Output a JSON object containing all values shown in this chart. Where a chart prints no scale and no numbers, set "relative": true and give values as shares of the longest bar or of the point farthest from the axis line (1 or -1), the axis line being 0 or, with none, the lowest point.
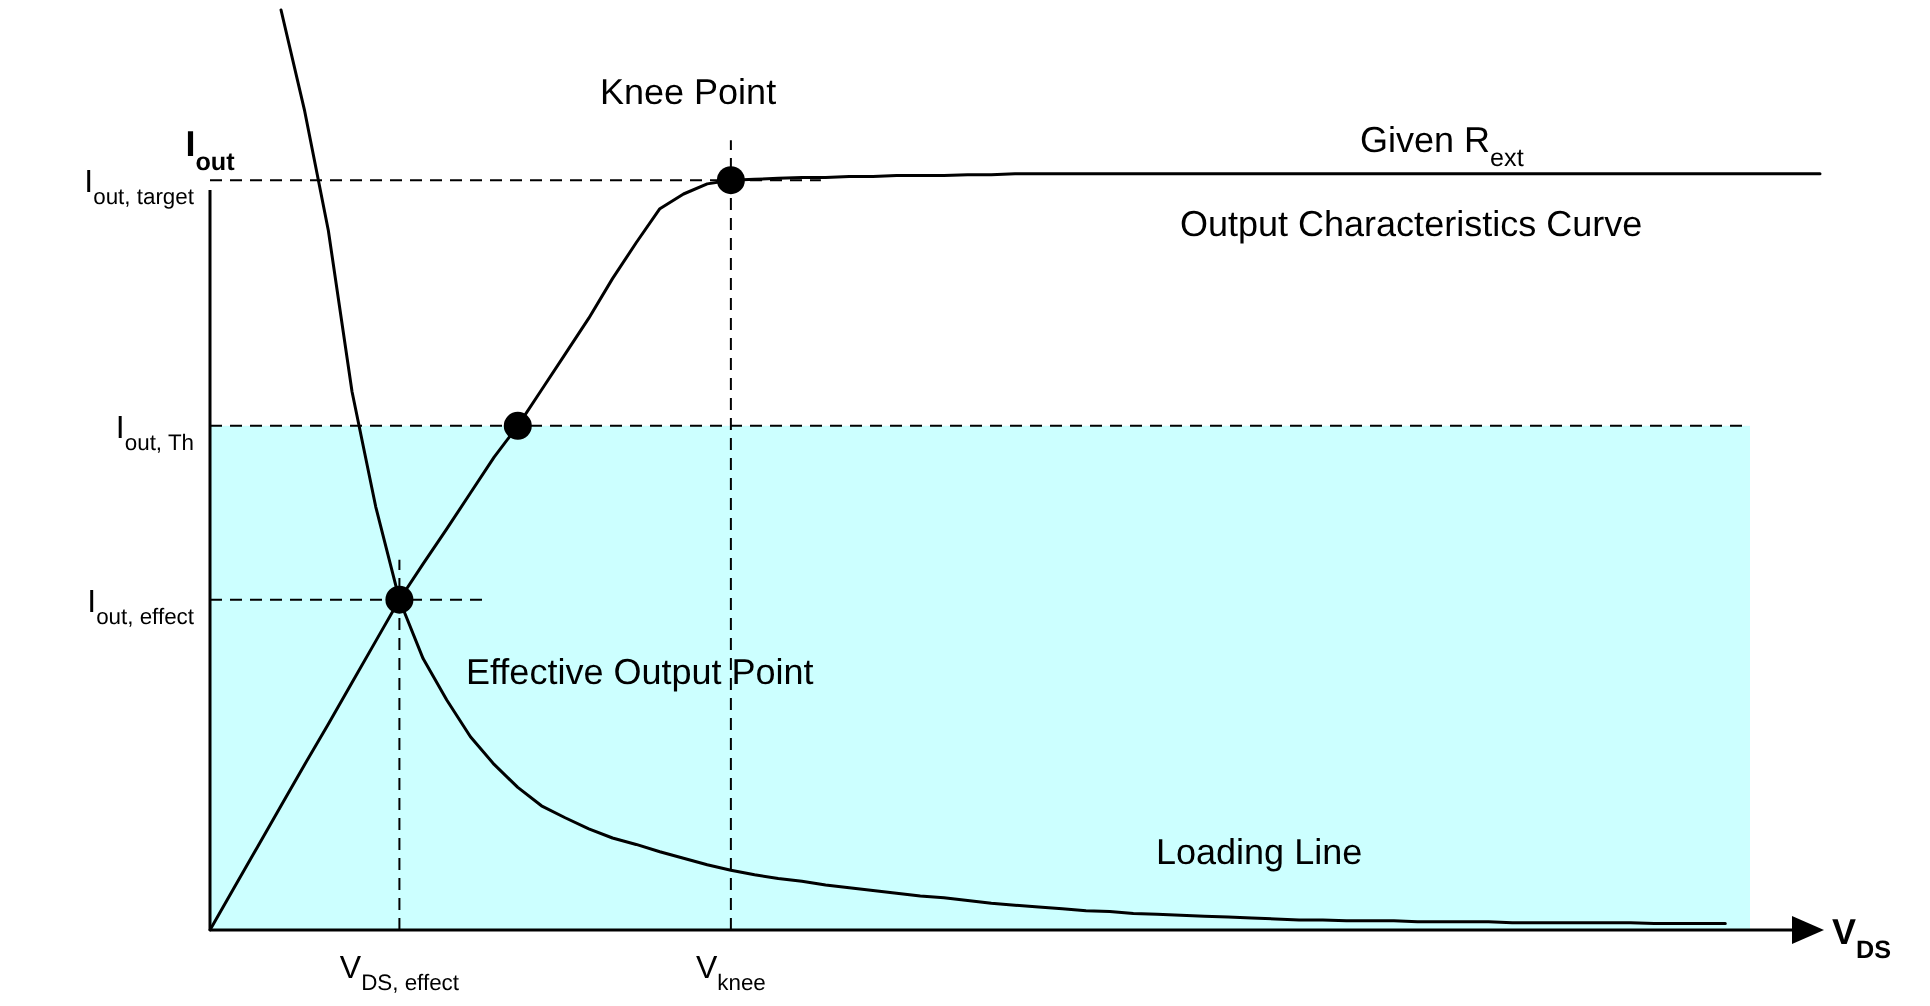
{
  "chart_data": {
    "type": "line",
    "relative": true,
    "ylabel": "I$_{out}$",
    "xlabel": "V$_{DS}$",
    "grid": false,
    "categories": [
      null,
      null,
      null,
      null,
      null,
      null,
      null,
      null,
      "V$_{DS, effect}$",
      null,
      null,
      null,
      null,
      null,
      null,
      null,
      null,
      null,
      null,
      null,
      null,
      null,
      "V$_{knee}$",
      null,
      null,
      null,
      null,
      null,
      null,
      null,
      null,
      null,
      null,
      null,
      null,
      null,
      null,
      null,
      null,
      null,
      null,
      null,
      null,
      null,
      null,
      null,
      null,
      null,
      null,
      null,
      null,
      null,
      null,
      null,
      null,
      null,
      null,
      null,
      null,
      null,
      null,
      null,
      null,
      null,
      null,
      null,
      null,
      null,
      null
    ],
    "series": [
      {
        "color": "#000000",
        "values": [
          0,
          0.045,
          0.09,
          0.135,
          0.18,
          0.224,
          0.269,
          0.314,
          0.359,
          0.398,
          0.436,
          0.475,
          0.514,
          0.548,
          0.587,
          0.626,
          0.665,
          0.708,
          0.747,
          0.784,
          0.8,
          0.811,
          0.815,
          0.816,
          0.817,
          0.818,
          0.818,
          0.819,
          0.819,
          0.82,
          0.82,
          0.82,
          0.821,
          0.821,
          0.822,
          0.822,
          0.822,
          0.822,
          0.822,
          0.822,
          0.822,
          0.822,
          0.822,
          0.822,
          0.822,
          0.822,
          0.822,
          0.822,
          0.822,
          0.822,
          0.822,
          0.822,
          0.822,
          0.822,
          0.822,
          0.822,
          0.822,
          0.822,
          0.822,
          0.822,
          0.822,
          0.822,
          0.822,
          0.822,
          0.822,
          0.822,
          0.822,
          0.822,
          0.822
        ]
      },
      {
        "color": "#000000",
        "values": [
          null,
          null,
          null,
          1.0,
          0.89,
          0.76,
          0.585,
          0.46,
          0.359,
          0.295,
          0.25,
          0.21,
          0.18,
          0.155,
          0.135,
          0.122,
          0.11,
          0.1,
          0.093,
          0.085,
          0.078,
          0.071,
          0.065,
          0.06,
          0.056,
          0.053,
          0.049,
          0.046,
          0.043,
          0.04,
          0.037,
          0.035,
          0.032,
          0.029,
          0.027,
          0.025,
          0.023,
          0.021,
          0.02,
          0.018,
          0.017,
          0.016,
          0.015,
          0.014,
          0.013,
          0.012,
          0.011,
          0.011,
          0.01,
          0.01,
          0.01,
          0.009,
          0.009,
          0.009,
          0.009,
          0.008,
          0.008,
          0.008,
          0.008,
          0.008,
          0.008,
          0.007,
          0.007,
          0.007,
          0.007,
          null,
          null,
          null,
          null
        ]
      },
      {
        "type": "scatter",
        "color": "#000000",
        "marker": "circle",
        "values": [
          null,
          null,
          null,
          null,
          null,
          null,
          null,
          null,
          0.359,
          null,
          null,
          null,
          null,
          0.548,
          null,
          null,
          null,
          null,
          null,
          null,
          null,
          null,
          0.815,
          null,
          null,
          null,
          null,
          null,
          null,
          null,
          null,
          null,
          null,
          null,
          null,
          null,
          null,
          null,
          null,
          null,
          null,
          null,
          null,
          null,
          null,
          null,
          null,
          null,
          null,
          null,
          null,
          null,
          null,
          null,
          null,
          null,
          null,
          null,
          null,
          null,
          null,
          null,
          null,
          null,
          null,
          null,
          null,
          null,
          null
        ]
      }
    ],
    "ref_lines": [
      {
        "axis": "y",
        "value": 0.815,
        "label": "I$_{out, target}$",
        "line_style": "dashed"
      },
      {
        "axis": "y",
        "value": 0.548,
        "label": "I$_{out, Th}$",
        "line_style": "dashed"
      },
      {
        "axis": "y",
        "value": 0.359,
        "label": "I$_{out, effect}$",
        "line_style": "dashed"
      },
      {
        "axis": "x",
        "value": "V$_{DS, effect}$",
        "line_style": "dashed"
      },
      {
        "axis": "x",
        "value": "V$_{knee}$",
        "line_style": "dashed"
      }
    ],
    "bands": [
      {
        "axis": "y",
        "from": 0,
        "to": 0.548,
        "color": "#ccffff"
      }
    ],
    "annotations": [
      "Knee Point",
      "Given R$_{ext}$",
      "Output Characteristics Curve",
      "Effective Output Point",
      "Loading Line"
    ]
  }
}
